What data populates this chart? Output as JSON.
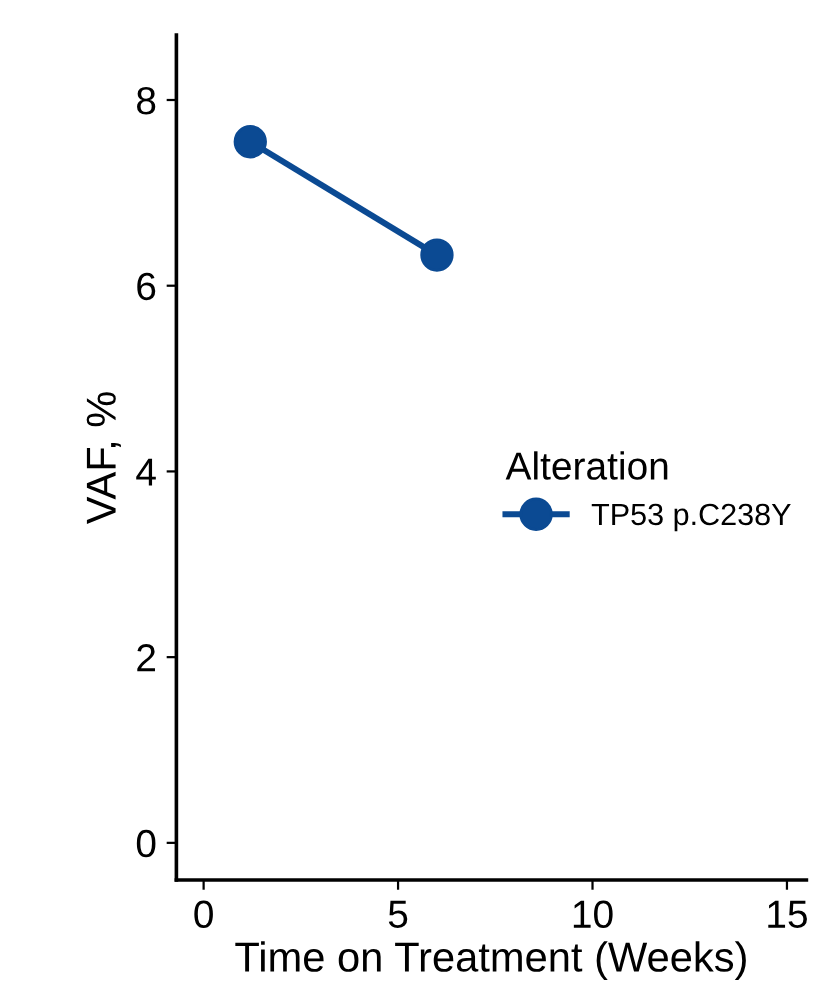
{
  "chart_data": {
    "type": "line",
    "xlabel": "Time on Treatment (Weeks)",
    "ylabel": "VAF, %",
    "legend_title": "Alteration",
    "x": [
      1.2,
      6.0
    ],
    "series": [
      {
        "name": "TP53 p.C238Y",
        "color": "#0b4a93",
        "values": [
          7.55,
          6.33
        ]
      }
    ],
    "xlim": [
      -0.7,
      15.5
    ],
    "xticks": [
      0,
      5,
      10,
      15
    ],
    "ylim": [
      -0.4,
      8.7
    ],
    "yticks": [
      0,
      2,
      4,
      6,
      8
    ],
    "grid": false,
    "legend": "right",
    "marker": "circle",
    "line_style": "solid"
  }
}
